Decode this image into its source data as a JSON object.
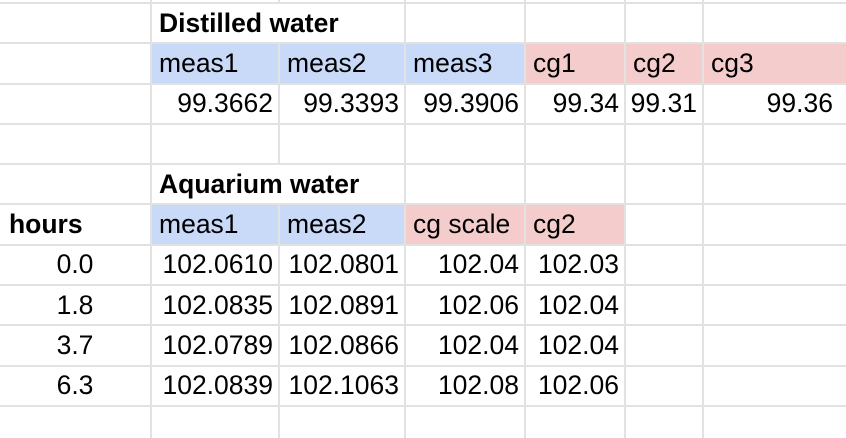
{
  "sheet": {
    "distilled": {
      "title": "Distilled water",
      "columns": [
        "meas1",
        "meas2",
        "meas3",
        "cg1",
        "cg2",
        "cg3"
      ],
      "values": [
        "99.3662",
        "99.3393",
        "99.3906",
        "99.34",
        "99.31",
        "99.36"
      ]
    },
    "aquarium": {
      "title": "Aquarium water",
      "hours_header": "hours",
      "columns": [
        "meas1",
        "meas2",
        "cg scale",
        "cg2"
      ],
      "rows": [
        {
          "hours": "0.0",
          "values": [
            "102.0610",
            "102.0801",
            "102.04",
            "102.03"
          ]
        },
        {
          "hours": "1.8",
          "values": [
            "102.0835",
            "102.0891",
            "102.06",
            "102.04"
          ]
        },
        {
          "hours": "3.7",
          "values": [
            "102.0789",
            "102.0866",
            "102.04",
            "102.04"
          ]
        },
        {
          "hours": "6.3",
          "values": [
            "102.0839",
            "102.1063",
            "102.08",
            "102.06"
          ]
        }
      ]
    },
    "colors": {
      "meas_header_bg": "#c9daf8",
      "cg_header_bg": "#f4cccc",
      "gridline": "#e2e2e2"
    }
  }
}
